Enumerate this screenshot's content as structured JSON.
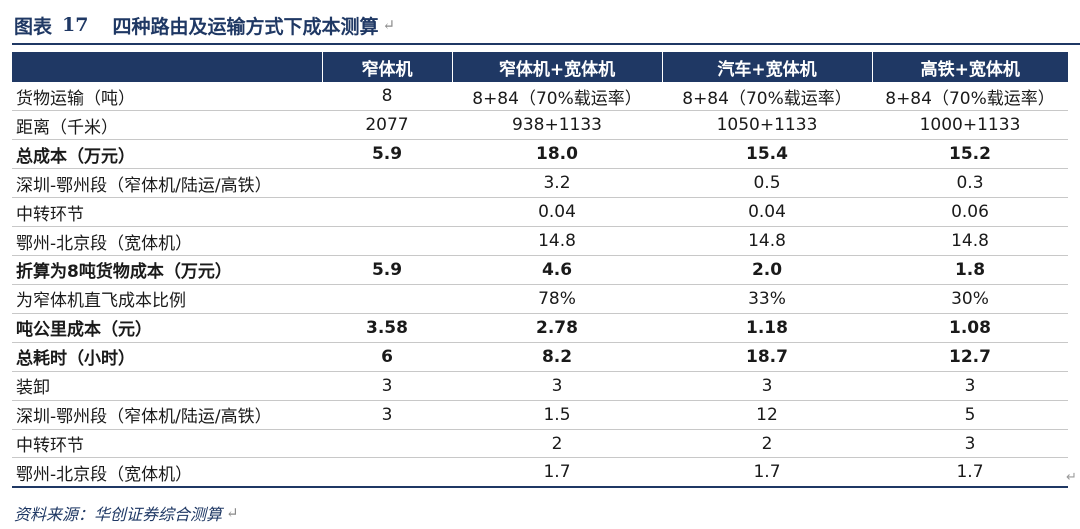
{
  "figure": {
    "label": "图表",
    "number": "17",
    "title": "四种路由及运输方式下成本测算",
    "return_mark": "↵"
  },
  "table": {
    "headers": [
      "",
      "窄体机",
      "窄体机+宽体机",
      "汽车+宽体机",
      "高铁+宽体机"
    ],
    "rows": [
      {
        "bold": false,
        "cells": [
          "货物运输（吨）",
          "8",
          "8+84（70%载运率）",
          "8+84（70%载运率）",
          "8+84（70%载运率）"
        ]
      },
      {
        "bold": false,
        "cells": [
          "距离（千米）",
          "2077",
          "938+1133",
          "1050+1133",
          "1000+1133"
        ]
      },
      {
        "bold": true,
        "cells": [
          "总成本（万元）",
          "5.9",
          "18.0",
          "15.4",
          "15.2"
        ]
      },
      {
        "bold": false,
        "cells": [
          "深圳-鄂州段（窄体机/陆运/高铁）",
          "",
          "3.2",
          "0.5",
          "0.3"
        ]
      },
      {
        "bold": false,
        "cells": [
          "中转环节",
          "",
          "0.04",
          "0.04",
          "0.06"
        ]
      },
      {
        "bold": false,
        "cells": [
          "鄂州-北京段（宽体机）",
          "",
          "14.8",
          "14.8",
          "14.8"
        ]
      },
      {
        "bold": true,
        "cells": [
          "折算为8吨货物成本（万元）",
          "5.9",
          "4.6",
          "2.0",
          "1.8"
        ]
      },
      {
        "bold": false,
        "cells": [
          "为窄体机直飞成本比例",
          "",
          "78%",
          "33%",
          "30%"
        ]
      },
      {
        "bold": true,
        "cells": [
          "吨公里成本（元）",
          "3.58",
          "2.78",
          "1.18",
          "1.08"
        ]
      },
      {
        "bold": true,
        "cells": [
          "总耗时（小时）",
          "6",
          "8.2",
          "18.7",
          "12.7"
        ]
      },
      {
        "bold": false,
        "cells": [
          "装卸",
          "3",
          "3",
          "3",
          "3"
        ]
      },
      {
        "bold": false,
        "cells": [
          "深圳-鄂州段（窄体机/陆运/高铁）",
          "3",
          "1.5",
          "12",
          "5"
        ]
      },
      {
        "bold": false,
        "cells": [
          "中转环节",
          "",
          "2",
          "2",
          "3"
        ]
      },
      {
        "bold": false,
        "cells": [
          "鄂州-北京段（宽体机）",
          "",
          "1.7",
          "1.7",
          "1.7"
        ]
      }
    ]
  },
  "source": {
    "text": "资料来源：华创证券综合测算",
    "return_mark": "↵"
  },
  "side_mark": "↵",
  "colors": {
    "accent": "#1f3864",
    "rule": "#c8c8c8"
  }
}
